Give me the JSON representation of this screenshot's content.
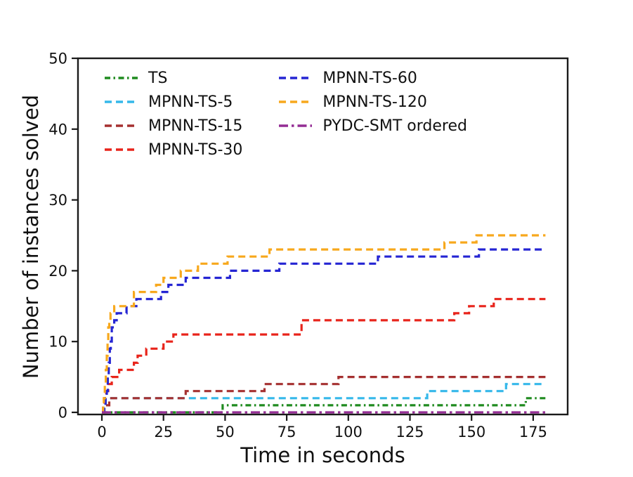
{
  "chart_data": {
    "type": "line",
    "subtype": "step-post (cactus plot of solved instances over time)",
    "title": "",
    "xlabel": "Time in seconds",
    "ylabel": "Number of instances solved",
    "xlim": [
      -9.7,
      189
    ],
    "ylim": [
      -0.3,
      50
    ],
    "x_ticks": [
      0,
      25,
      50,
      75,
      100,
      125,
      150,
      175
    ],
    "y_ticks": [
      0,
      10,
      20,
      30,
      40,
      50
    ],
    "grid": false,
    "axis_color": "#1a1a1a",
    "legend": {
      "position": "upper-left",
      "columns": 2,
      "column_split": [
        4,
        3
      ],
      "frame": false
    },
    "series": [
      {
        "label": "TS",
        "color": "#1f8b1f",
        "linestyle": "dashdot",
        "points": [
          [
            0,
            0
          ],
          [
            49,
            1
          ],
          [
            172,
            2
          ],
          [
            180,
            2
          ]
        ]
      },
      {
        "label": "MPNN-TS-5",
        "color": "#35b8ea",
        "linestyle": "dashed",
        "points": [
          [
            0,
            0
          ],
          [
            0.7,
            1
          ],
          [
            1.5,
            2
          ],
          [
            132,
            3
          ],
          [
            164,
            4
          ],
          [
            180,
            4
          ]
        ]
      },
      {
        "label": "MPNN-TS-15",
        "color": "#a53030",
        "linestyle": "dashed",
        "points": [
          [
            0,
            0
          ],
          [
            1,
            1
          ],
          [
            3,
            2
          ],
          [
            34,
            3
          ],
          [
            66,
            4
          ],
          [
            96,
            5
          ],
          [
            180,
            5
          ]
        ]
      },
      {
        "label": "MPNN-TS-30",
        "color": "#e8241b",
        "linestyle": "dashed",
        "points": [
          [
            0,
            0
          ],
          [
            0.5,
            1
          ],
          [
            1,
            2
          ],
          [
            1.8,
            3
          ],
          [
            2.6,
            4
          ],
          [
            4,
            5
          ],
          [
            7,
            6
          ],
          [
            13,
            7
          ],
          [
            14.5,
            8
          ],
          [
            18,
            9
          ],
          [
            25,
            10
          ],
          [
            29,
            11
          ],
          [
            81,
            13
          ],
          [
            143,
            14
          ],
          [
            149,
            15
          ],
          [
            159,
            16
          ],
          [
            180,
            16
          ]
        ]
      },
      {
        "label": "MPNN-TS-60",
        "color": "#2525d3",
        "linestyle": "dashed",
        "points": [
          [
            0,
            0
          ],
          [
            1,
            1
          ],
          [
            1.5,
            2
          ],
          [
            2,
            3
          ],
          [
            2.4,
            5
          ],
          [
            2.8,
            7
          ],
          [
            3.2,
            9
          ],
          [
            3.6,
            10
          ],
          [
            4,
            12
          ],
          [
            5,
            13
          ],
          [
            6,
            14
          ],
          [
            10,
            15
          ],
          [
            14,
            16
          ],
          [
            24,
            17
          ],
          [
            27,
            18
          ],
          [
            34,
            19
          ],
          [
            52,
            20
          ],
          [
            72,
            21
          ],
          [
            112,
            22
          ],
          [
            153,
            23
          ],
          [
            180,
            23
          ]
        ]
      },
      {
        "label": "MPNN-TS-120",
        "color": "#f7a81d",
        "linestyle": "dashed",
        "points": [
          [
            0,
            0
          ],
          [
            0.5,
            1
          ],
          [
            0.8,
            2
          ],
          [
            1.2,
            4
          ],
          [
            1.6,
            6
          ],
          [
            2,
            8
          ],
          [
            2.3,
            10
          ],
          [
            2.6,
            12
          ],
          [
            3,
            13
          ],
          [
            3.5,
            14
          ],
          [
            5,
            15
          ],
          [
            13,
            17
          ],
          [
            22,
            18
          ],
          [
            25,
            19
          ],
          [
            32,
            20
          ],
          [
            39,
            21
          ],
          [
            51,
            22
          ],
          [
            68,
            23
          ],
          [
            139,
            24
          ],
          [
            152,
            25
          ],
          [
            180,
            25
          ]
        ]
      },
      {
        "label": "PYDC-SMT ordered",
        "color": "#942d94",
        "linestyle": "dashdot-long",
        "points": [
          [
            0,
            0
          ],
          [
            180,
            0
          ]
        ]
      }
    ]
  }
}
